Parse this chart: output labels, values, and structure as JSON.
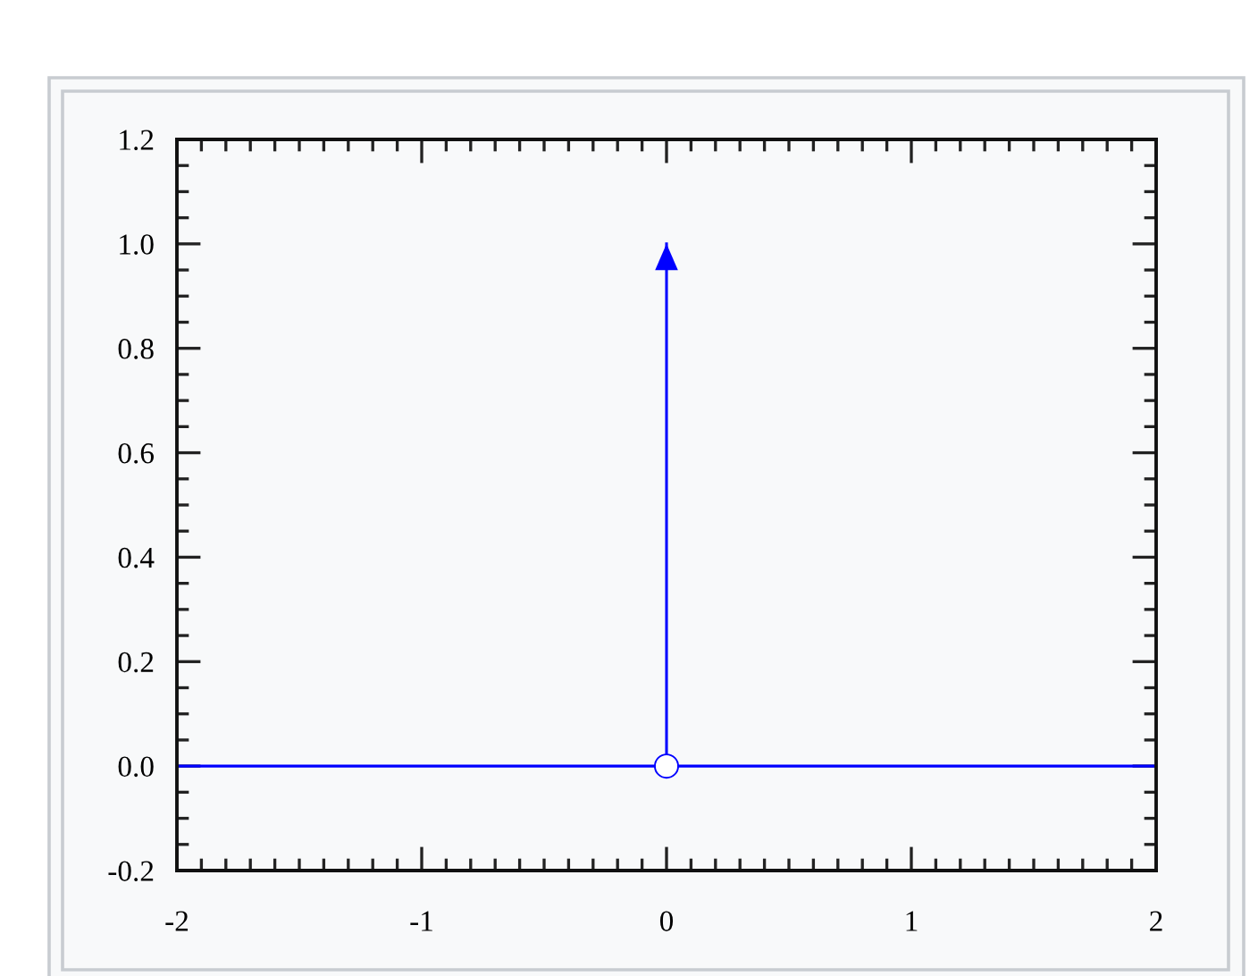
{
  "chart_data": {
    "type": "line",
    "series": [
      {
        "x": [
          -2,
          2
        ],
        "values": [
          0,
          0
        ],
        "color": "#0000ff",
        "marker": "none",
        "line_style": "solid"
      },
      {
        "x": [
          0,
          0
        ],
        "values": [
          0,
          1
        ],
        "color": "#0000ff",
        "marker": "none",
        "line_style": "solid"
      },
      {
        "type": "scatter",
        "x": [
          0
        ],
        "values": [
          0
        ],
        "color": "#0000ff",
        "marker": "circle"
      }
    ],
    "xlim": [
      -2,
      2
    ],
    "ylim": [
      -0.2,
      1.2
    ],
    "xticks": [
      -2,
      -1,
      0,
      1,
      2,
      {
        "value": -1.9,
        "label": null
      },
      {
        "value": -1.8,
        "label": null
      },
      {
        "value": -1.7,
        "label": null
      },
      {
        "value": -1.6,
        "label": null
      },
      {
        "value": -1.5,
        "label": null
      },
      {
        "value": -1.4,
        "label": null
      },
      {
        "value": -1.3,
        "label": null
      },
      {
        "value": -1.2,
        "label": null
      },
      {
        "value": -1.1,
        "label": null
      },
      {
        "value": -0.9,
        "label": null
      },
      {
        "value": -0.8,
        "label": null
      },
      {
        "value": -0.7,
        "label": null
      },
      {
        "value": -0.6,
        "label": null
      },
      {
        "value": -0.5,
        "label": null
      },
      {
        "value": -0.4,
        "label": null
      },
      {
        "value": -0.3,
        "label": null
      },
      {
        "value": -0.2,
        "label": null
      },
      {
        "value": -0.1,
        "label": null
      },
      {
        "value": 0.1,
        "label": null
      },
      {
        "value": 0.2,
        "label": null
      },
      {
        "value": 0.3,
        "label": null
      },
      {
        "value": 0.4,
        "label": null
      },
      {
        "value": 0.5,
        "label": null
      },
      {
        "value": 0.6,
        "label": null
      },
      {
        "value": 0.7,
        "label": null
      },
      {
        "value": 0.8,
        "label": null
      },
      {
        "value": 0.9,
        "label": null
      },
      {
        "value": 1.1,
        "label": null
      },
      {
        "value": 1.2,
        "label": null
      },
      {
        "value": 1.3,
        "label": null
      },
      {
        "value": 1.4,
        "label": null
      },
      {
        "value": 1.5,
        "label": null
      },
      {
        "value": 1.6,
        "label": null
      },
      {
        "value": 1.7,
        "label": null
      },
      {
        "value": 1.8,
        "label": null
      },
      {
        "value": 1.9,
        "label": null
      }
    ],
    "yticks": [
      -0.2,
      {
        "value": 0,
        "label": "0.0"
      },
      0.2,
      0.4,
      0.6,
      0.8,
      {
        "value": 1,
        "label": "1.0"
      },
      1.2,
      {
        "value": -0.15,
        "label": null
      },
      {
        "value": -0.1,
        "label": null
      },
      {
        "value": -0.05,
        "label": null
      },
      {
        "value": 0.05,
        "label": null
      },
      {
        "value": 0.1,
        "label": null
      },
      {
        "value": 0.15,
        "label": null
      },
      {
        "value": 0.25,
        "label": null
      },
      {
        "value": 0.3,
        "label": null
      },
      {
        "value": 0.35,
        "label": null
      },
      {
        "value": 0.45,
        "label": null
      },
      {
        "value": 0.5,
        "label": null
      },
      {
        "value": 0.55,
        "label": null
      },
      {
        "value": 0.65,
        "label": null
      },
      {
        "value": 0.7,
        "label": null
      },
      {
        "value": 0.75,
        "label": null
      },
      {
        "value": 0.85,
        "label": null
      },
      {
        "value": 0.9,
        "label": null
      },
      {
        "value": 0.95,
        "label": null
      },
      {
        "value": 1.05,
        "label": null
      },
      {
        "value": 1.1,
        "label": null
      },
      {
        "value": 1.15,
        "label": null
      }
    ]
  }
}
